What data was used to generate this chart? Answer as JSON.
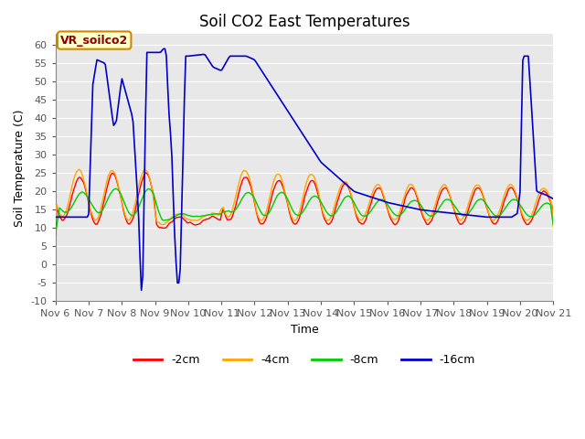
{
  "title": "Soil CO2 East Temperatures",
  "xlabel": "Time",
  "ylabel": "Soil Temperature (C)",
  "ylim": [
    -10,
    63
  ],
  "xlim": [
    0,
    360
  ],
  "legend_labels": [
    "-2cm",
    "-4cm",
    "-8cm",
    "-16cm"
  ],
  "legend_colors": [
    "#ff0000",
    "#ffa500",
    "#00cc00",
    "#0000cc"
  ],
  "annotation_text": "VR_soilco2",
  "annotation_bg": "#ffffcc",
  "annotation_border": "#cc8800",
  "bg_color": "#e8e8e8",
  "grid_color": "#ffffff",
  "xtick_labels": [
    "Nov 6",
    "Nov 7",
    "Nov 8",
    "Nov 9",
    "Nov 10",
    "Nov 11",
    "Nov 12",
    "Nov 13",
    "Nov 14",
    "Nov 15",
    "Nov 16",
    "Nov 17",
    "Nov 18",
    "Nov 19",
    "Nov 20",
    "Nov 21"
  ],
  "ytick_vals": [
    -10,
    -5,
    0,
    5,
    10,
    15,
    20,
    25,
    30,
    35,
    40,
    45,
    50,
    55,
    60
  ],
  "title_fontsize": 12,
  "axis_fontsize": 9,
  "tick_fontsize": 8
}
